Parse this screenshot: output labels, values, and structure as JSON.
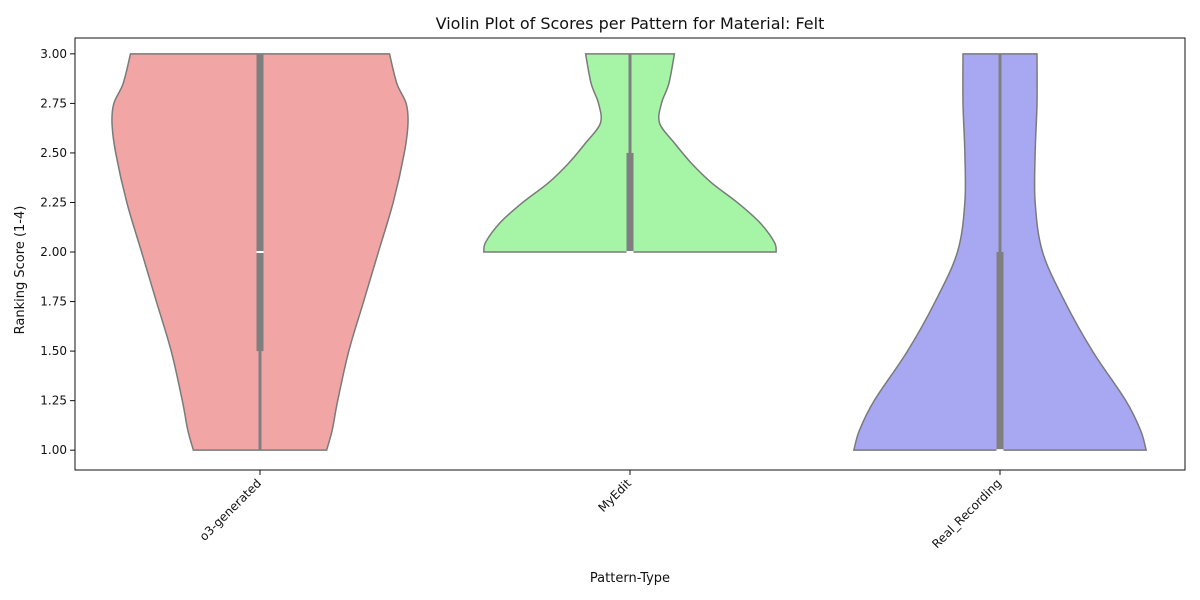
{
  "chart_data": {
    "type": "violin",
    "title": "Violin Plot of Scores per Pattern for Material: Felt",
    "xlabel": "Pattern-Type",
    "ylabel": "Ranking Score (1-4)",
    "categories": [
      "o3-generated",
      "MyEdit",
      "Real_Recording"
    ],
    "ylim": [
      0.9,
      3.08
    ],
    "y_ticks": [
      1.0,
      1.25,
      1.5,
      1.75,
      2.0,
      2.25,
      2.5,
      2.75,
      3.0
    ],
    "y_tick_labels": [
      "1.00",
      "1.25",
      "1.50",
      "1.75",
      "2.00",
      "2.25",
      "2.50",
      "2.75",
      "3.00"
    ],
    "grid": false,
    "series": [
      {
        "category": "o3-generated",
        "color": "#f2a5a5",
        "quartiles": {
          "min": 1.0,
          "q1": 1.5,
          "median": 2.0,
          "q3": 3.0,
          "max": 3.0
        },
        "density": {
          "y": [
            1.0,
            1.1,
            1.25,
            1.5,
            1.75,
            2.0,
            2.25,
            2.5,
            2.65,
            2.75,
            2.85,
            3.0
          ],
          "half_width": [
            0.36,
            0.39,
            0.42,
            0.48,
            0.56,
            0.64,
            0.72,
            0.78,
            0.8,
            0.79,
            0.74,
            0.7
          ]
        }
      },
      {
        "category": "MyEdit",
        "color": "#a6f5a6",
        "quartiles": {
          "min": 2.0,
          "q1": 2.0,
          "median": 2.0,
          "q3": 2.5,
          "max": 3.0
        },
        "density": {
          "y": [
            2.0,
            2.05,
            2.15,
            2.25,
            2.35,
            2.45,
            2.55,
            2.65,
            2.75,
            2.85,
            3.0
          ],
          "half_width": [
            0.79,
            0.78,
            0.7,
            0.58,
            0.44,
            0.33,
            0.24,
            0.16,
            0.17,
            0.21,
            0.24
          ]
        }
      },
      {
        "category": "Real_Recording",
        "color": "#a8a8f2",
        "quartiles": {
          "min": 1.0,
          "q1": 1.0,
          "median": 1.0,
          "q3": 2.0,
          "max": 3.0
        },
        "density": {
          "y": [
            1.0,
            1.1,
            1.25,
            1.5,
            1.75,
            2.0,
            2.25,
            2.5,
            2.75,
            3.0
          ],
          "half_width": [
            0.79,
            0.76,
            0.68,
            0.5,
            0.35,
            0.23,
            0.19,
            0.19,
            0.2,
            0.2
          ]
        }
      }
    ]
  }
}
